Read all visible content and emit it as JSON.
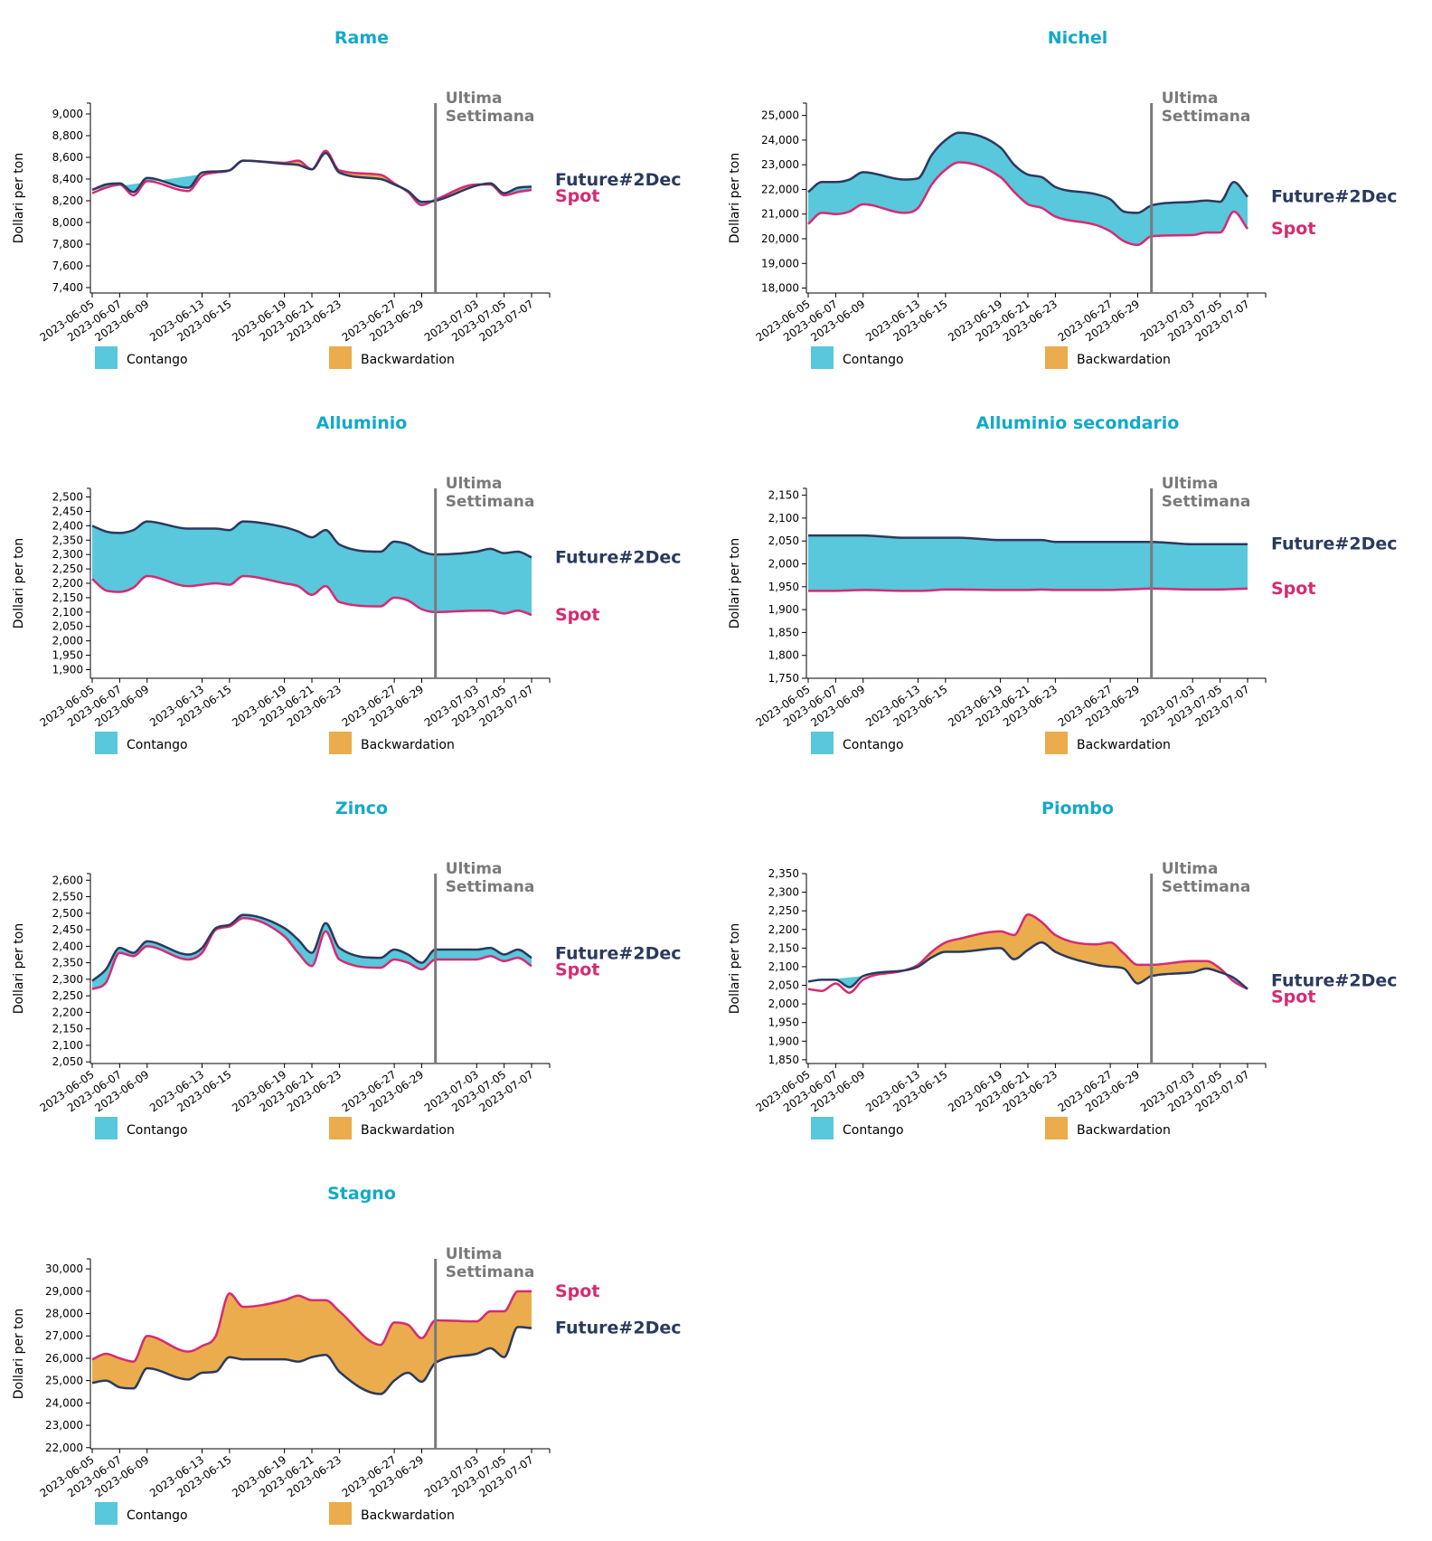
{
  "colors": {
    "contango": "#59c7dc",
    "backwardation": "#eaac4c",
    "future": "#2a3a5e",
    "spot": "#d62a72",
    "title": "#13a9c8",
    "marker": "#7a7a7a"
  },
  "common": {
    "x": [
      "2023-06-05",
      "2023-06-06",
      "2023-06-07",
      "2023-06-08",
      "2023-06-09",
      "2023-06-12",
      "2023-06-13",
      "2023-06-14",
      "2023-06-15",
      "2023-06-16",
      "2023-06-19",
      "2023-06-20",
      "2023-06-21",
      "2023-06-22",
      "2023-06-23",
      "2023-06-26",
      "2023-06-27",
      "2023-06-28",
      "2023-06-29",
      "2023-06-30",
      "2023-07-03",
      "2023-07-04",
      "2023-07-05",
      "2023-07-06",
      "2023-07-07"
    ],
    "x_ticks": [
      "2023-06-05",
      "2023-06-07",
      "2023-06-09",
      "2023-06-13",
      "2023-06-15",
      "2023-06-19",
      "2023-06-21",
      "2023-06-23",
      "2023-06-27",
      "2023-06-29",
      "2023-07-03",
      "2023-07-05",
      "2023-07-07"
    ],
    "ylabel": "Dollari per ton",
    "marker_label_line1": "Ultima",
    "marker_label_line2": "Settimana",
    "marker_x": "2023-06-30",
    "legend": [
      "Contango",
      "Backwardation"
    ],
    "series_names": [
      "Future#2Dec",
      "Spot"
    ]
  },
  "chart_data": [
    {
      "type": "area",
      "title": "Rame",
      "ylim": [
        7350,
        9100
      ],
      "yticks": [
        7400,
        7600,
        7800,
        8000,
        8200,
        8400,
        8600,
        8800,
        9000
      ],
      "series": [
        {
          "name": "Future#2Dec",
          "values": [
            8300,
            8350,
            8360,
            8280,
            8410,
            8320,
            8460,
            8470,
            8480,
            8570,
            8540,
            8530,
            8490,
            8640,
            8460,
            8400,
            8350,
            8290,
            8190,
            8200,
            8340,
            8360,
            8270,
            8320,
            8330
          ]
        },
        {
          "name": "Spot",
          "values": [
            8270,
            8320,
            8350,
            8250,
            8380,
            8290,
            8430,
            8460,
            8480,
            8570,
            8550,
            8570,
            8490,
            8660,
            8480,
            8440,
            8360,
            8280,
            8160,
            8210,
            8350,
            8350,
            8250,
            8280,
            8300
          ]
        }
      ]
    },
    {
      "type": "area",
      "title": "Nichel",
      "ylim": [
        17800,
        25500
      ],
      "yticks": [
        18000,
        19000,
        20000,
        21000,
        22000,
        23000,
        24000,
        25000
      ],
      "series": [
        {
          "name": "Future#2Dec",
          "values": [
            21900,
            22300,
            22300,
            22400,
            22700,
            22400,
            22450,
            23400,
            24000,
            24300,
            23700,
            23000,
            22600,
            22500,
            22100,
            21800,
            21600,
            21100,
            21050,
            21350,
            21500,
            21550,
            21500,
            22300,
            21700
          ]
        },
        {
          "name": "Spot",
          "values": [
            20600,
            21050,
            21000,
            21100,
            21400,
            21050,
            21250,
            22200,
            22800,
            23100,
            22500,
            21900,
            21400,
            21250,
            20900,
            20550,
            20300,
            19900,
            19750,
            20100,
            20150,
            20250,
            20250,
            21100,
            20400
          ]
        }
      ]
    },
    {
      "type": "area",
      "title": "Alluminio",
      "ylim": [
        1870,
        2530
      ],
      "yticks": [
        1900,
        1950,
        2000,
        2050,
        2100,
        2150,
        2200,
        2250,
        2300,
        2350,
        2400,
        2450,
        2500
      ],
      "series": [
        {
          "name": "Future#2Dec",
          "values": [
            2400,
            2380,
            2375,
            2385,
            2415,
            2390,
            2390,
            2390,
            2385,
            2415,
            2395,
            2380,
            2360,
            2385,
            2335,
            2310,
            2345,
            2335,
            2310,
            2300,
            2310,
            2320,
            2305,
            2310,
            2290
          ]
        },
        {
          "name": "Spot",
          "values": [
            2215,
            2175,
            2170,
            2185,
            2225,
            2190,
            2195,
            2200,
            2195,
            2225,
            2200,
            2190,
            2160,
            2190,
            2135,
            2120,
            2150,
            2140,
            2110,
            2100,
            2105,
            2105,
            2095,
            2105,
            2090
          ]
        }
      ]
    },
    {
      "type": "area",
      "title": "Alluminio secondario",
      "ylim": [
        1750,
        2165
      ],
      "yticks": [
        1750,
        1800,
        1850,
        1900,
        1950,
        2000,
        2050,
        2100,
        2150
      ],
      "series": [
        {
          "name": "Future#2Dec",
          "values": [
            2062,
            2062,
            2062,
            2062,
            2062,
            2057,
            2057,
            2057,
            2057,
            2057,
            2052,
            2052,
            2052,
            2052,
            2048,
            2048,
            2048,
            2048,
            2048,
            2048,
            2043,
            2043,
            2043,
            2043,
            2043
          ]
        },
        {
          "name": "Spot",
          "values": [
            1941,
            1941,
            1941,
            1942,
            1943,
            1941,
            1941,
            1942,
            1944,
            1944,
            1943,
            1943,
            1943,
            1944,
            1943,
            1943,
            1943,
            1944,
            1945,
            1946,
            1944,
            1944,
            1944,
            1945,
            1946
          ]
        }
      ]
    },
    {
      "type": "area",
      "title": "Zinco",
      "ylim": [
        2045,
        2620
      ],
      "yticks": [
        2050,
        2100,
        2150,
        2200,
        2250,
        2300,
        2350,
        2400,
        2450,
        2500,
        2550,
        2600
      ],
      "series": [
        {
          "name": "Future#2Dec",
          "values": [
            2295,
            2330,
            2395,
            2380,
            2415,
            2375,
            2395,
            2455,
            2465,
            2495,
            2455,
            2420,
            2380,
            2470,
            2395,
            2365,
            2390,
            2375,
            2350,
            2390,
            2390,
            2395,
            2375,
            2390,
            2365
          ]
        },
        {
          "name": "Spot",
          "values": [
            2270,
            2290,
            2380,
            2370,
            2400,
            2360,
            2380,
            2450,
            2460,
            2485,
            2430,
            2380,
            2340,
            2445,
            2360,
            2335,
            2360,
            2350,
            2330,
            2360,
            2360,
            2370,
            2355,
            2365,
            2340
          ]
        }
      ]
    },
    {
      "type": "area",
      "title": "Piombo",
      "ylim": [
        1840,
        2350
      ],
      "yticks": [
        1850,
        1900,
        1950,
        2000,
        2050,
        2100,
        2150,
        2200,
        2250,
        2300,
        2350
      ],
      "series": [
        {
          "name": "Future#2Dec",
          "values": [
            2060,
            2065,
            2065,
            2045,
            2075,
            2090,
            2100,
            2125,
            2140,
            2140,
            2150,
            2120,
            2145,
            2165,
            2140,
            2105,
            2100,
            2095,
            2055,
            2075,
            2085,
            2095,
            2085,
            2070,
            2040
          ]
        },
        {
          "name": "Spot",
          "values": [
            2040,
            2035,
            2055,
            2030,
            2065,
            2090,
            2105,
            2140,
            2165,
            2175,
            2195,
            2185,
            2240,
            2220,
            2185,
            2160,
            2165,
            2135,
            2105,
            2105,
            2115,
            2115,
            2095,
            2060,
            2040
          ]
        }
      ]
    },
    {
      "type": "area",
      "title": "Stagno",
      "ylim": [
        21950,
        30450
      ],
      "yticks": [
        22000,
        23000,
        24000,
        25000,
        26000,
        27000,
        28000,
        29000,
        30000
      ],
      "series": [
        {
          "name": "Future#2Dec",
          "values": [
            24900,
            25000,
            24700,
            24650,
            25550,
            25050,
            25350,
            25400,
            26050,
            25950,
            25950,
            25850,
            26050,
            26150,
            25400,
            24400,
            25000,
            25350,
            24950,
            25800,
            26200,
            26450,
            26050,
            27400,
            27350
          ]
        },
        {
          "name": "Spot",
          "values": [
            25950,
            26200,
            26000,
            25850,
            27000,
            26300,
            26550,
            27000,
            28900,
            28300,
            28600,
            28800,
            28600,
            28600,
            28100,
            26600,
            27600,
            27500,
            26900,
            27700,
            27650,
            28100,
            28100,
            29000,
            29000
          ]
        }
      ]
    }
  ]
}
